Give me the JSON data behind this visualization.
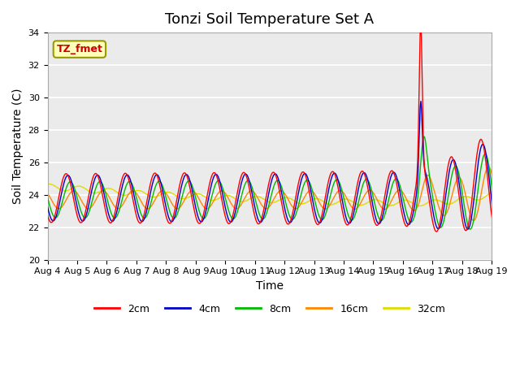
{
  "title": "Tonzi Soil Temperature Set A",
  "xlabel": "Time",
  "ylabel": "Soil Temperature (C)",
  "ylim": [
    20,
    34
  ],
  "annotation_label": "TZ_fmet",
  "line_colors": {
    "2cm": "#ff0000",
    "4cm": "#0000cc",
    "8cm": "#00bb00",
    "16cm": "#ff8800",
    "32cm": "#dddd00"
  },
  "legend_labels": [
    "2cm",
    "4cm",
    "8cm",
    "16cm",
    "32cm"
  ],
  "background_color": "#ebebeb",
  "grid_color": "#ffffff",
  "xtick_labels": [
    "Aug 4",
    "Aug 5",
    "Aug 6",
    "Aug 7",
    "Aug 8",
    "Aug 9",
    "Aug 10",
    "Aug 11",
    "Aug 12",
    "Aug 13",
    "Aug 14",
    "Aug 15",
    "Aug 16",
    "Aug 17",
    "Aug 18",
    "Aug 19"
  ],
  "title_fontsize": 13,
  "axis_fontsize": 10,
  "tick_fontsize": 8
}
